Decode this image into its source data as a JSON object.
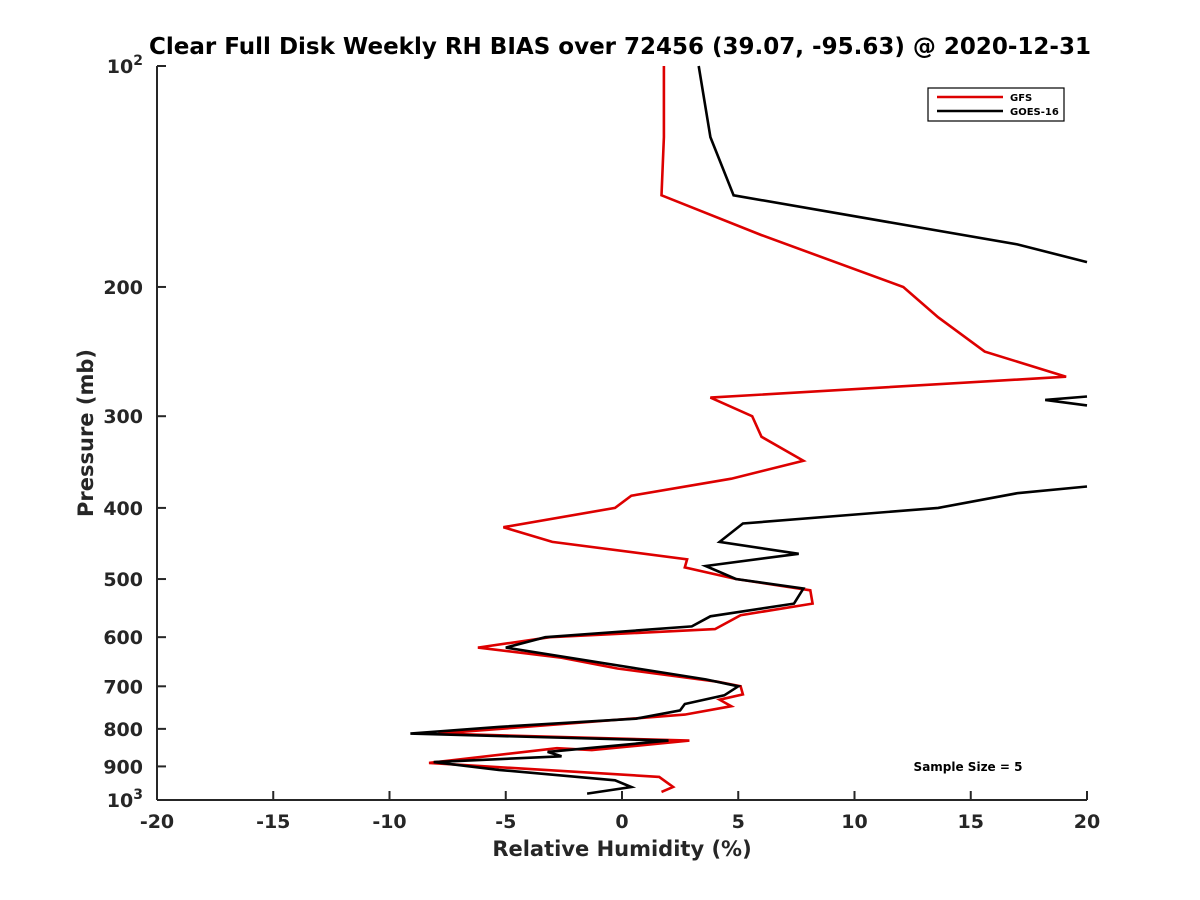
{
  "chart_data": {
    "type": "line",
    "title": "Clear Full Disk Weekly RH BIAS over 72456 (39.07, -95.63) @ 2020-12-31",
    "xlabel": "Relative Humidity (%)",
    "ylabel": "Pressure (mb)",
    "xlim": [
      -20,
      20
    ],
    "ylim": [
      100,
      1000
    ],
    "y_scale": "log",
    "y_reversed": true,
    "grid": false,
    "x_ticks": [
      "-20",
      "-15",
      "-10",
      "-5",
      "0",
      "5",
      "10",
      "15",
      "20"
    ],
    "y_ticks": [
      {
        "value": 100,
        "base": "10",
        "exp": "2"
      },
      {
        "value": 200,
        "label": "200"
      },
      {
        "value": 300,
        "label": "300"
      },
      {
        "value": 400,
        "label": "400"
      },
      {
        "value": 500,
        "label": "500"
      },
      {
        "value": 600,
        "label": "600"
      },
      {
        "value": 700,
        "label": "700"
      },
      {
        "value": 800,
        "label": "800"
      },
      {
        "value": 900,
        "label": "900"
      },
      {
        "value": 1000,
        "base": "10",
        "exp": "3"
      }
    ],
    "legend_position": "top-right",
    "annotation": "Sample Size = 5",
    "series": [
      {
        "name": "GFS",
        "color": "#dd0000",
        "points": [
          [
            1.8,
            100
          ],
          [
            1.8,
            125
          ],
          [
            1.7,
            150
          ],
          [
            6.0,
            170
          ],
          [
            12.1,
            200
          ],
          [
            13.6,
            220
          ],
          [
            15.6,
            245
          ],
          [
            19.1,
            265
          ],
          [
            3.8,
            283
          ],
          [
            5.6,
            300
          ],
          [
            6.0,
            320
          ],
          [
            7.8,
            345
          ],
          [
            4.7,
            365
          ],
          [
            0.4,
            385
          ],
          [
            -0.3,
            400
          ],
          [
            -5.1,
            425
          ],
          [
            -3.0,
            445
          ],
          [
            2.8,
            470
          ],
          [
            2.7,
            482
          ],
          [
            4.9,
            500
          ],
          [
            8.1,
            518
          ],
          [
            8.2,
            540
          ],
          [
            5.1,
            560
          ],
          [
            4.0,
            585
          ],
          [
            -3.1,
            600
          ],
          [
            -6.2,
            620
          ],
          [
            -2.6,
            640
          ],
          [
            -0.2,
            662
          ],
          [
            4.1,
            690
          ],
          [
            5.1,
            700
          ],
          [
            5.2,
            718
          ],
          [
            4.2,
            730
          ],
          [
            4.7,
            745
          ],
          [
            2.7,
            765
          ],
          [
            -7.9,
            812
          ],
          [
            2.9,
            830
          ],
          [
            -1.3,
            855
          ],
          [
            -2.8,
            850
          ],
          [
            -8.3,
            890
          ],
          [
            1.6,
            930
          ],
          [
            2.2,
            960
          ],
          [
            1.7,
            975
          ]
        ]
      },
      {
        "name": "GOES-16",
        "color": "#000000",
        "segments": [
          [
            [
              3.3,
              100
            ],
            [
              3.8,
              125
            ],
            [
              4.8,
              150
            ],
            [
              17.0,
              175
            ],
            [
              20.0,
              185
            ]
          ],
          [
            [
              20.0,
              282
            ],
            [
              18.2,
              285
            ],
            [
              20.0,
              290
            ]
          ],
          [
            [
              20.0,
              374
            ],
            [
              17.0,
              382
            ],
            [
              13.6,
              400
            ],
            [
              5.2,
              420
            ],
            [
              4.2,
              445
            ],
            [
              7.6,
              462
            ],
            [
              3.6,
              480
            ],
            [
              4.9,
              500
            ],
            [
              7.8,
              515
            ],
            [
              7.4,
              540
            ],
            [
              3.8,
              562
            ],
            [
              3.0,
              580
            ],
            [
              -3.3,
              600
            ],
            [
              -5.0,
              620
            ],
            [
              -1.6,
              645
            ],
            [
              3.6,
              685
            ],
            [
              5.0,
              700
            ],
            [
              4.4,
              720
            ],
            [
              2.7,
              740
            ],
            [
              2.5,
              755
            ],
            [
              0.6,
              775
            ],
            [
              -5.3,
              795
            ],
            [
              -9.1,
              812
            ],
            [
              2.0,
              830
            ],
            [
              -3.2,
              860
            ],
            [
              -2.6,
              872
            ],
            [
              -8.1,
              888
            ],
            [
              -5.3,
              910
            ],
            [
              -0.3,
              940
            ],
            [
              0.4,
              960
            ],
            [
              -1.5,
              980
            ]
          ]
        ]
      }
    ]
  }
}
